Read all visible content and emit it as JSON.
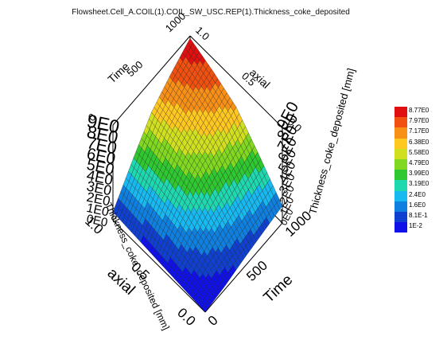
{
  "chart_data": {
    "type": "surface3d",
    "title": "Flowsheet.Cell_A.COIL(1).COIL_SW_USC.REP(1).Thickness_coke_deposited",
    "axes": {
      "time": {
        "label": "Time",
        "ticks": [
          "0",
          "500",
          "1000"
        ],
        "range": [
          0,
          1000
        ]
      },
      "axial": {
        "label": "axial",
        "ticks": [
          "0.0",
          "0.5",
          "1.0"
        ],
        "range": [
          0,
          1
        ]
      },
      "z": {
        "label": "Thickness_coke_deposited [mm]",
        "ticks": [
          "0E0",
          "1E0",
          "2E0",
          "3E0",
          "4E0",
          "5E0",
          "6E0",
          "7E0",
          "8E0",
          "9E0"
        ],
        "range": [
          0,
          9
        ]
      }
    },
    "surface_samples": {
      "description_ignored": "",
      "axial": [
        0.0,
        0.25,
        0.5,
        0.75,
        1.0
      ],
      "time": [
        0,
        250,
        500,
        750,
        1000
      ],
      "thickness_mm": [
        [
          0.01,
          0.3,
          0.8,
          1.2,
          1.6
        ],
        [
          0.2,
          1.5,
          2.6,
          3.4,
          4.2
        ],
        [
          0.4,
          2.6,
          4.5,
          5.6,
          6.6
        ],
        [
          0.6,
          3.2,
          5.4,
          6.9,
          7.8
        ],
        [
          0.8,
          3.5,
          6.0,
          7.5,
          8.77
        ]
      ]
    },
    "colorbar": {
      "values": [
        "8.77E0",
        "7.97E0",
        "7.17E0",
        "6.38E0",
        "5.58E0",
        "4.79E0",
        "3.99E0",
        "3.19E0",
        "2.4E0",
        "1.6E0",
        "8.1E-1",
        "1E-2"
      ],
      "colors": [
        "#e01010",
        "#f05010",
        "#f89018",
        "#ffc820",
        "#d0e020",
        "#80d820",
        "#30c830",
        "#20d8b0",
        "#18b8f0",
        "#1080e0",
        "#1040d0",
        "#1010e8"
      ]
    }
  }
}
